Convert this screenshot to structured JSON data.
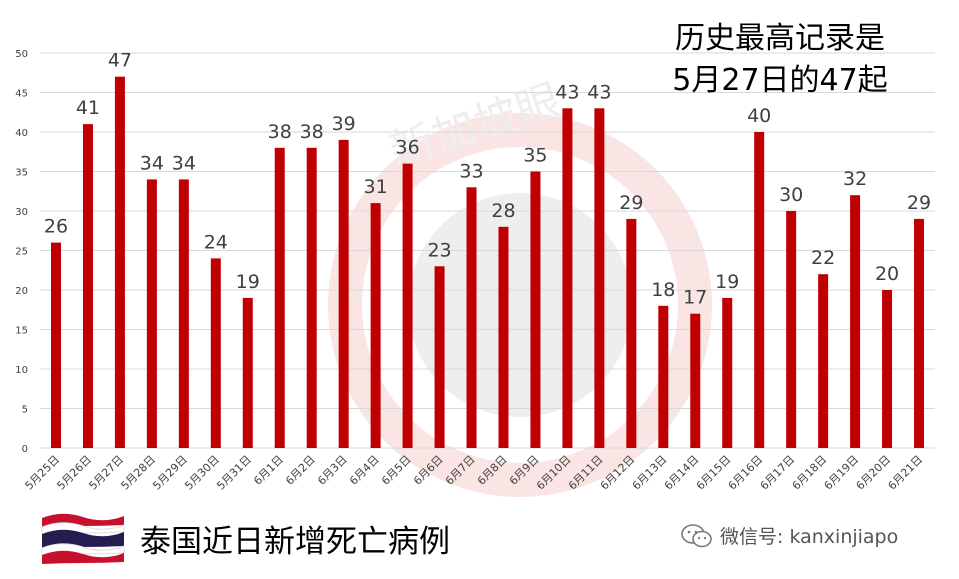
{
  "chart_data": {
    "type": "bar",
    "title": "",
    "xlabel": "",
    "ylabel": "",
    "ylim": [
      0,
      50
    ],
    "yticks": [
      0,
      5,
      10,
      15,
      20,
      25,
      30,
      35,
      40,
      45,
      50
    ],
    "grid": true,
    "categories": [
      "5月25日",
      "5月26日",
      "5月27日",
      "5月28日",
      "5月29日",
      "5月30日",
      "5月31日",
      "6月1日",
      "6月2日",
      "6月3日",
      "6月4日",
      "6月5日",
      "6月6日",
      "6月7日",
      "6月8日",
      "6月9日",
      "6月10日",
      "6月11日",
      "6月12日",
      "6月13日",
      "6月14日",
      "6月15日",
      "6月16日",
      "6月17日",
      "6月18日",
      "6月19日",
      "6月20日",
      "6月21日"
    ],
    "series": [
      {
        "values": [
          26,
          41,
          47,
          34,
          34,
          24,
          19,
          38,
          38,
          39,
          31,
          36,
          23,
          33,
          28,
          35,
          43,
          43,
          29,
          18,
          17,
          19,
          40,
          30,
          22,
          32,
          20,
          29
        ]
      }
    ],
    "bar_color": "#c00000",
    "annotation": [
      "历史最高记录是",
      "5月27日的47起"
    ]
  },
  "caption": "泰国近日新增死亡病例",
  "watermark": "新加坡眼",
  "wechat_id": "微信号: kanxinjiapo",
  "flag_colors": {
    "red": "#c8102e",
    "white": "#ffffff",
    "blue": "#241d4f"
  }
}
